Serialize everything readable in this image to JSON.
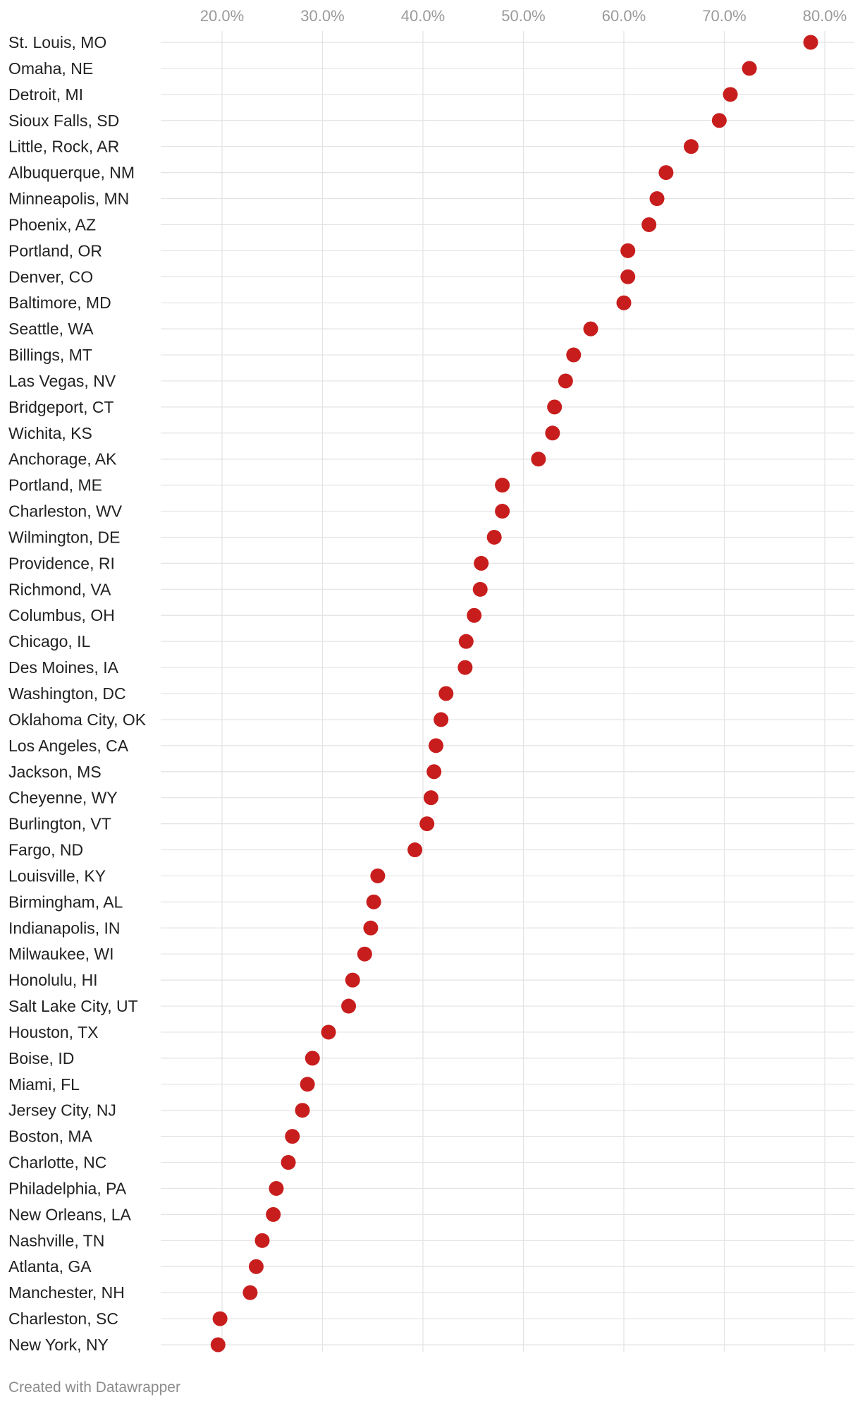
{
  "colors": {
    "dot": "#c71e1d",
    "grid": "#e3e3e3",
    "tick_text": "#9a9a9a",
    "label_text": "#222222"
  },
  "footer": {
    "credit": "Created with Datawrapper"
  },
  "chart_data": {
    "type": "scatter",
    "title": "",
    "xlabel": "",
    "ylabel": "",
    "xlim": [
      15,
      80
    ],
    "x_ticks": [
      20,
      30,
      40,
      50,
      60,
      70,
      80
    ],
    "x_tick_labels": [
      "20.0%",
      "30.0%",
      "40.0%",
      "50.0%",
      "60.0%",
      "70.0%",
      "80.0%"
    ],
    "grid": true,
    "legend": "none",
    "categories": [
      "St. Louis, MO",
      "Omaha, NE",
      "Detroit, MI",
      "Sioux Falls, SD",
      "Little, Rock, AR",
      "Albuquerque, NM",
      "Minneapolis, MN",
      "Phoenix, AZ",
      "Portland, OR",
      "Denver, CO",
      "Baltimore, MD",
      "Seattle, WA",
      "Billings, MT",
      "Las Vegas, NV",
      "Bridgeport, CT",
      "Wichita, KS",
      "Anchorage, AK",
      "Portland, ME",
      "Charleston, WV",
      "Wilmington, DE",
      "Providence, RI",
      "Richmond, VA",
      "Columbus, OH",
      "Chicago, IL",
      "Des Moines, IA",
      "Washington, DC",
      "Oklahoma City, OK",
      "Los Angeles, CA",
      "Jackson, MS",
      "Cheyenne, WY",
      "Burlington, VT",
      "Fargo, ND",
      "Louisville, KY",
      "Birmingham, AL",
      "Indianapolis, IN",
      "Milwaukee, WI",
      "Honolulu, HI",
      "Salt Lake City, UT",
      "Houston, TX",
      "Boise, ID",
      "Miami, FL",
      "Jersey City, NJ",
      "Boston, MA",
      "Charlotte, NC",
      "Philadelphia, PA",
      "New Orleans, LA",
      "Nashville, TN",
      "Atlanta, GA",
      "Manchester, NH",
      "Charleston, SC",
      "New York, NY"
    ],
    "values": [
      78.6,
      72.5,
      70.6,
      69.5,
      66.7,
      64.2,
      63.3,
      62.5,
      60.4,
      60.4,
      60.0,
      56.7,
      55.0,
      54.2,
      53.1,
      52.9,
      51.5,
      47.9,
      47.9,
      47.1,
      45.8,
      45.7,
      45.1,
      44.3,
      44.2,
      42.3,
      41.8,
      41.3,
      41.1,
      40.8,
      40.4,
      39.2,
      35.5,
      35.1,
      34.8,
      34.2,
      33.0,
      32.6,
      30.6,
      29.0,
      28.5,
      28.0,
      27.0,
      26.6,
      25.4,
      25.1,
      24.0,
      23.4,
      22.8,
      19.8,
      19.6
    ]
  }
}
